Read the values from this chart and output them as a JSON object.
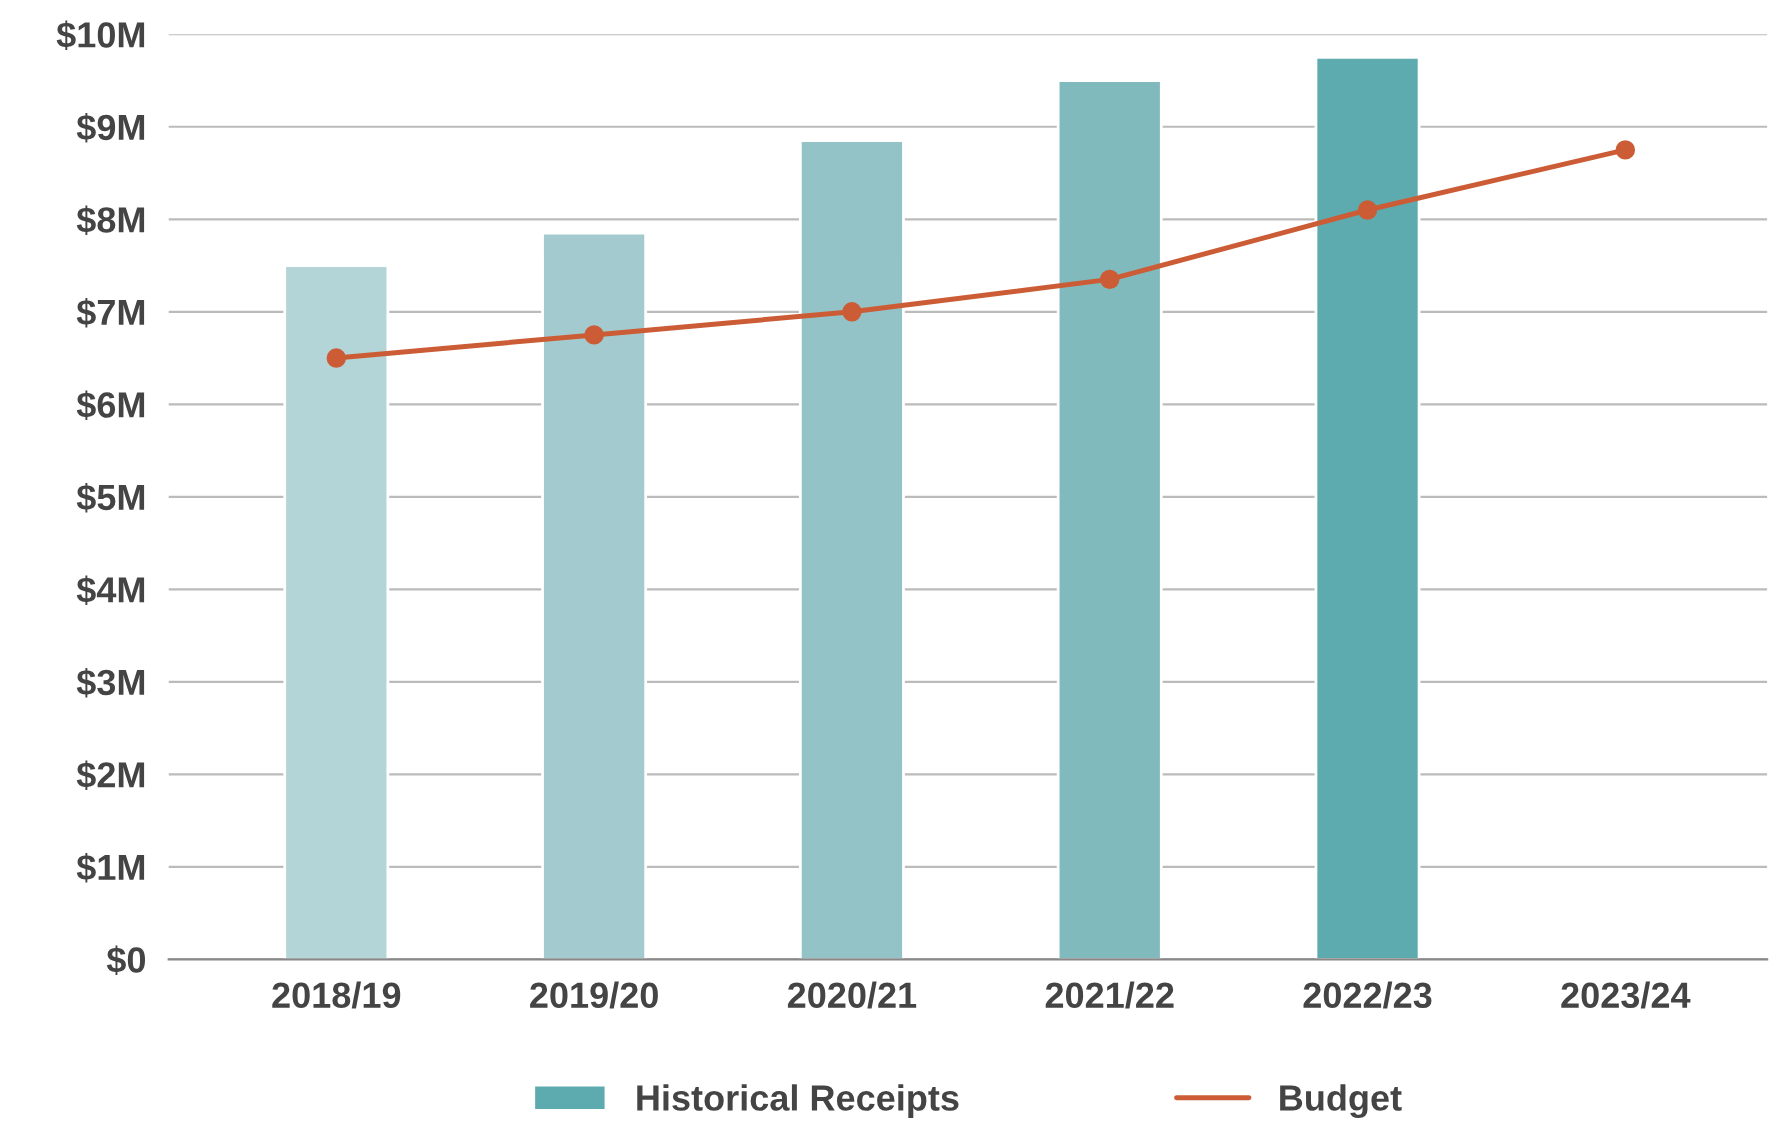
{
  "chart_data": {
    "type": "bar",
    "categories": [
      "2018/19",
      "2019/20",
      "2020/21",
      "2021/22",
      "2022/23",
      "2023/24"
    ],
    "series": [
      {
        "name": "Historical Receipts",
        "colors": [
          "#b3d5d8",
          "#a3cbcf",
          "#93c3c6",
          "#80babd",
          "#5eabaf",
          null
        ],
        "color": "#5eabaf",
        "values": [
          7.5,
          7.85,
          8.85,
          9.5,
          9.75,
          null
        ]
      },
      {
        "name": "Budget",
        "type": "line",
        "color": "#cc5c35",
        "marker": "circle",
        "values": [
          6.5,
          6.75,
          7.0,
          7.35,
          8.1,
          8.75
        ]
      }
    ],
    "ylim": [
      0,
      10
    ],
    "yticks": [
      {
        "value": 0,
        "label": "$0"
      },
      {
        "value": 1,
        "label": "$1M"
      },
      {
        "value": 2,
        "label": "$2M"
      },
      {
        "value": 3,
        "label": "$3M"
      },
      {
        "value": 4,
        "label": "$4M"
      },
      {
        "value": 5,
        "label": "$5M"
      },
      {
        "value": 6,
        "label": "$6M"
      },
      {
        "value": 7,
        "label": "$7M"
      },
      {
        "value": 8,
        "label": "$8M"
      },
      {
        "value": 9,
        "label": "$9M"
      },
      {
        "value": 10,
        "label": "$10M"
      }
    ],
    "grid": "y",
    "legend": "bottom"
  }
}
